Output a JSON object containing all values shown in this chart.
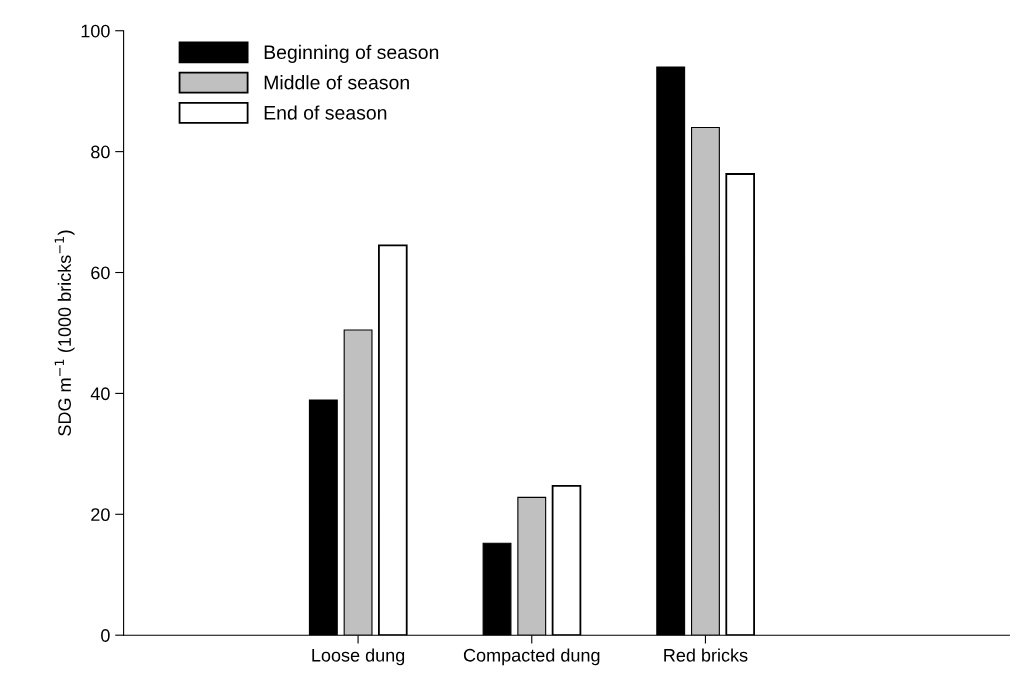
{
  "chart_data": {
    "type": "bar",
    "ylabel": "SDG m$^{−1}$ (1000 bricks$^{−1}$)",
    "categories": [
      "Loose dung",
      "Compacted dung",
      "Red bricks"
    ],
    "series": [
      {
        "name": "Beginning of season",
        "color": "#000000",
        "values": [
          38.9,
          15.2,
          94
        ]
      },
      {
        "name": "Middle of season",
        "color": "#c0c0c0",
        "values": [
          50.5,
          22.8,
          84
        ]
      },
      {
        "name": "End of season",
        "color": "#ffffff",
        "values": [
          64.5,
          24.7,
          76.3
        ]
      }
    ],
    "ylim": [
      0,
      100
    ],
    "yticks": [
      0,
      20,
      40,
      60,
      80,
      100
    ],
    "grid": false,
    "legend": "top left"
  }
}
